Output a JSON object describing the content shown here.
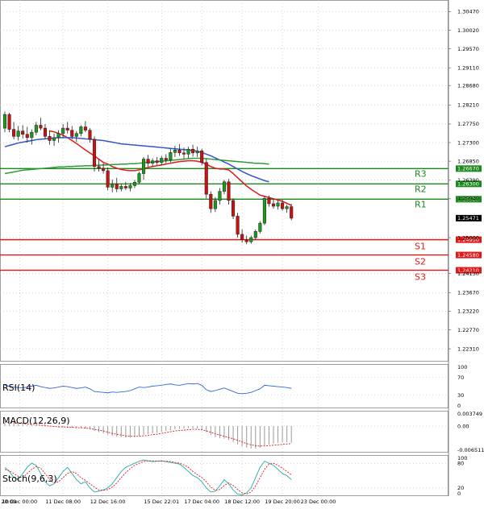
{
  "chart_data": {
    "type": "candlestick",
    "instrument_hint": "forex pair",
    "price_axis": {
      "range": [
        1.22,
        1.3075
      ],
      "tick_labels": [
        "1.30470",
        "1.30020",
        "1.29570",
        "1.29110",
        "1.28680",
        "1.28210",
        "1.27750",
        "1.27300",
        "1.26850",
        "1.26390",
        "1.25940",
        "1.25000",
        "1.24130",
        "1.23670",
        "1.23220",
        "1.22770",
        "1.22310"
      ],
      "last_price": "1.25471"
    },
    "levels": [
      {
        "name": "R3",
        "value": 1.2667,
        "label": "1.26670",
        "color": "#1a8a1a"
      },
      {
        "name": "R2",
        "value": 1.263,
        "label": "1.26300",
        "color": "#1a8a1a"
      },
      {
        "name": "R1",
        "value": 1.2593,
        "label": "1.25930",
        "color": "#1a8a1a"
      },
      {
        "name": "S1",
        "value": 1.2495,
        "label": "1.24950",
        "color": "#e01818"
      },
      {
        "name": "S2",
        "value": 1.2458,
        "label": "1.24580",
        "color": "#e01818"
      },
      {
        "name": "S3",
        "value": 1.2421,
        "label": "1.24210",
        "color": "#e01818"
      }
    ],
    "time_labels": [
      "9 Dec 20:00",
      "10 Dec 00:00",
      "11 Dec 08:00",
      "12 Dec 16:00",
      "15 Dec 22:01",
      "17 Dec 04:00",
      "18 Dec 12:00",
      "19 Dec 20:00",
      "23 Dec 00:00"
    ],
    "candles_ohlc": [
      [
        1.2765,
        1.2805,
        1.2755,
        1.2798
      ],
      [
        1.2798,
        1.2802,
        1.2755,
        1.2762
      ],
      [
        1.2762,
        1.278,
        1.2738,
        1.2745
      ],
      [
        1.2745,
        1.277,
        1.2735,
        1.2758
      ],
      [
        1.2758,
        1.2772,
        1.274,
        1.275
      ],
      [
        1.275,
        1.2768,
        1.273,
        1.2742
      ],
      [
        1.2742,
        1.2762,
        1.2725,
        1.2755
      ],
      [
        1.2755,
        1.278,
        1.2748,
        1.2772
      ],
      [
        1.2772,
        1.279,
        1.276,
        1.2765
      ],
      [
        1.2765,
        1.2775,
        1.2738,
        1.2745
      ],
      [
        1.2745,
        1.276,
        1.2725,
        1.2735
      ],
      [
        1.2735,
        1.2752,
        1.2722,
        1.2742
      ],
      [
        1.2742,
        1.276,
        1.273,
        1.2752
      ],
      [
        1.2752,
        1.2775,
        1.2742,
        1.2765
      ],
      [
        1.2765,
        1.278,
        1.2752,
        1.276
      ],
      [
        1.276,
        1.277,
        1.2738,
        1.2745
      ],
      [
        1.2745,
        1.2758,
        1.2732,
        1.2752
      ],
      [
        1.2752,
        1.2772,
        1.2745,
        1.2768
      ],
      [
        1.2768,
        1.2782,
        1.2755,
        1.276
      ],
      [
        1.276,
        1.2765,
        1.273,
        1.2738
      ],
      [
        1.2738,
        1.2745,
        1.266,
        1.2672
      ],
      [
        1.2672,
        1.269,
        1.266,
        1.2668
      ],
      [
        1.2668,
        1.268,
        1.2655,
        1.2662
      ],
      [
        1.2662,
        1.267,
        1.2615,
        1.2622
      ],
      [
        1.2622,
        1.264,
        1.261,
        1.263
      ],
      [
        1.263,
        1.2645,
        1.261,
        1.2618
      ],
      [
        1.2618,
        1.263,
        1.2612,
        1.2624
      ],
      [
        1.2624,
        1.2635,
        1.2615,
        1.262
      ],
      [
        1.262,
        1.2632,
        1.2612,
        1.2626
      ],
      [
        1.2626,
        1.264,
        1.262,
        1.2634
      ],
      [
        1.2634,
        1.266,
        1.263,
        1.2655
      ],
      [
        1.2655,
        1.2695,
        1.264,
        1.269
      ],
      [
        1.269,
        1.27,
        1.2672,
        1.268
      ],
      [
        1.268,
        1.2692,
        1.2672,
        1.2686
      ],
      [
        1.2686,
        1.2695,
        1.2676,
        1.2682
      ],
      [
        1.2682,
        1.2698,
        1.2675,
        1.2692
      ],
      [
        1.2692,
        1.2702,
        1.268,
        1.2688
      ],
      [
        1.2688,
        1.2715,
        1.2682,
        1.2706
      ],
      [
        1.2706,
        1.2722,
        1.2695,
        1.2712
      ],
      [
        1.2712,
        1.2726,
        1.2698,
        1.2705
      ],
      [
        1.2705,
        1.2718,
        1.269,
        1.2702
      ],
      [
        1.2702,
        1.272,
        1.2692,
        1.2714
      ],
      [
        1.2714,
        1.2725,
        1.2696,
        1.2705
      ],
      [
        1.2705,
        1.272,
        1.2695,
        1.271
      ],
      [
        1.271,
        1.2715,
        1.2675,
        1.2682
      ],
      [
        1.2682,
        1.269,
        1.2595,
        1.2605
      ],
      [
        1.2605,
        1.2612,
        1.256,
        1.257
      ],
      [
        1.257,
        1.2598,
        1.2562,
        1.259
      ],
      [
        1.259,
        1.262,
        1.258,
        1.2612
      ],
      [
        1.2612,
        1.264,
        1.2605,
        1.2635
      ],
      [
        1.2635,
        1.2642,
        1.258,
        1.259
      ],
      [
        1.259,
        1.2595,
        1.2545,
        1.2552
      ],
      [
        1.2552,
        1.256,
        1.25,
        1.2508
      ],
      [
        1.2508,
        1.252,
        1.2488,
        1.2495
      ],
      [
        1.2495,
        1.2505,
        1.2484,
        1.249
      ],
      [
        1.249,
        1.2505,
        1.2485,
        1.25
      ],
      [
        1.25,
        1.252,
        1.2495,
        1.2515
      ],
      [
        1.2515,
        1.254,
        1.251,
        1.2535
      ],
      [
        1.2535,
        1.26,
        1.253,
        1.2595
      ],
      [
        1.2595,
        1.2602,
        1.2575,
        1.2582
      ],
      [
        1.2582,
        1.2595,
        1.257,
        1.2576
      ],
      [
        1.2576,
        1.259,
        1.2568,
        1.2584
      ],
      [
        1.2584,
        1.2592,
        1.2565,
        1.257
      ],
      [
        1.257,
        1.258,
        1.256,
        1.2575
      ],
      [
        1.2575,
        1.2582,
        1.2542,
        1.2547
      ]
    ],
    "moving_averages": [
      {
        "name": "MA fast",
        "color": "#e01818",
        "values": [
          null,
          null,
          null,
          null,
          null,
          null,
          null,
          null,
          null,
          null,
          1.2758,
          1.2756,
          1.2752,
          1.2748,
          1.2742,
          1.2735,
          1.2728,
          1.272,
          1.2712,
          1.2705,
          1.2698,
          1.269,
          1.2682,
          1.2678,
          1.2672,
          1.2668,
          1.2665,
          1.2663,
          1.2662,
          1.2662,
          1.2664,
          1.2667,
          1.267,
          1.2672,
          1.2674,
          1.2676,
          1.2678,
          1.268,
          1.2682,
          1.2684,
          1.2685,
          1.2686,
          1.2686,
          1.2685,
          1.2682,
          1.2678,
          1.2672,
          1.2668,
          1.2666,
          1.2666,
          1.2664,
          1.2655,
          1.2645,
          1.2635,
          1.2625,
          1.2617,
          1.261,
          1.2603,
          1.26,
          1.2597,
          1.2594,
          1.2591,
          1.2588,
          1.2583,
          1.2578
        ]
      },
      {
        "name": "MA slow",
        "color": "#3355cc",
        "values": [
          1.272,
          1.2723,
          1.2726,
          1.2729,
          1.2731,
          1.2733,
          1.2735,
          1.2737,
          1.2738,
          1.2739,
          1.274,
          1.2741,
          1.2742,
          1.2742,
          1.2742,
          1.2742,
          1.2741,
          1.274,
          1.2739,
          1.2738,
          1.2737,
          1.2736,
          1.2735,
          1.2733,
          1.2731,
          1.2729,
          1.2727,
          1.2726,
          1.2725,
          1.2724,
          1.2723,
          1.2722,
          1.2721,
          1.272,
          1.2719,
          1.2718,
          1.2717,
          1.2716,
          1.2715,
          1.2714,
          1.2713,
          1.2712,
          1.2711,
          1.2709,
          1.2706,
          1.2702,
          1.2698,
          1.2693,
          1.2688,
          1.2683,
          1.2678,
          1.2672,
          1.2666,
          1.266,
          1.2655,
          1.265,
          1.2646,
          1.2642,
          1.2638,
          1.2635,
          null,
          null,
          null,
          null,
          null
        ]
      },
      {
        "name": "MA long",
        "color": "#2e9c3a",
        "values": [
          1.2655,
          1.2657,
          1.2659,
          1.2661,
          1.2663,
          1.2664,
          1.2665,
          1.2666,
          1.2667,
          1.2668,
          1.2669,
          1.267,
          1.2671,
          1.2671,
          1.2672,
          1.2672,
          1.2673,
          1.2673,
          1.2674,
          1.2674,
          1.2675,
          1.2675,
          1.2676,
          1.2676,
          1.2677,
          1.2677,
          1.2678,
          1.2678,
          1.2679,
          1.2679,
          1.268,
          1.2681,
          1.2682,
          1.2683,
          1.2684,
          1.2685,
          1.2686,
          1.2687,
          1.2688,
          1.2689,
          1.269,
          1.2691,
          1.2692,
          1.2692,
          1.2692,
          1.2691,
          1.269,
          1.2689,
          1.2688,
          1.2687,
          1.2686,
          1.2685,
          1.2684,
          1.2683,
          1.2682,
          1.2681,
          1.268,
          1.268,
          1.2679,
          1.2678,
          null,
          null,
          null,
          null,
          null
        ]
      }
    ],
    "rsi": {
      "label": "RSI(14)",
      "axis_labels": [
        "100",
        "70",
        "30",
        "0"
      ],
      "color": "#3366dd",
      "values": [
        52,
        50,
        48,
        47,
        46,
        48,
        50,
        52,
        49,
        47,
        45,
        46,
        48,
        50,
        49,
        47,
        45,
        46,
        48,
        44,
        38,
        37,
        36,
        35,
        37,
        36,
        37,
        38,
        40,
        44,
        48,
        47,
        48,
        50,
        51,
        52,
        54,
        55,
        53,
        52,
        54,
        56,
        55,
        56,
        52,
        42,
        38,
        40,
        43,
        46,
        42,
        38,
        34,
        33,
        34,
        36,
        40,
        44,
        52,
        51,
        50,
        49,
        48,
        47,
        45
      ]
    },
    "macd": {
      "label": "MACD(12,26,9)",
      "axis_labels": [
        "0.003749",
        "0.00",
        "-0.006511"
      ],
      "signal_color": "#e01818",
      "hist": [
        0.0008,
        0.0007,
        0.0006,
        0.0005,
        0.0004,
        0.0003,
        0.0002,
        0.0002,
        0.0001,
        0.0,
        -0.0001,
        -0.0002,
        -0.0002,
        -0.0003,
        -0.0003,
        -0.0004,
        -0.0004,
        -0.0005,
        -0.0006,
        -0.0008,
        -0.0012,
        -0.0015,
        -0.0018,
        -0.0021,
        -0.0024,
        -0.0026,
        -0.0027,
        -0.0028,
        -0.0028,
        -0.0027,
        -0.0025,
        -0.0022,
        -0.002,
        -0.0018,
        -0.0016,
        -0.0014,
        -0.0012,
        -0.001,
        -0.0008,
        -0.0007,
        -0.0006,
        -0.0005,
        -0.0005,
        -0.0006,
        -0.0009,
        -0.0015,
        -0.0022,
        -0.0027,
        -0.003,
        -0.0031,
        -0.0034,
        -0.0039,
        -0.0045,
        -0.005,
        -0.0053,
        -0.0055,
        -0.0055,
        -0.0053,
        -0.0048,
        -0.0045,
        -0.0043,
        -0.0041,
        -0.004,
        -0.004,
        -0.0041
      ],
      "signal": [
        0.001,
        0.0009,
        0.0008,
        0.0007,
        0.0006,
        0.0005,
        0.0004,
        0.0003,
        0.0002,
        0.0001,
        0.0,
        -0.0001,
        -0.0002,
        -0.0002,
        -0.0003,
        -0.0003,
        -0.0004,
        -0.0004,
        -0.0005,
        -0.0006,
        -0.0008,
        -0.001,
        -0.0012,
        -0.0015,
        -0.0018,
        -0.002,
        -0.0022,
        -0.0024,
        -0.0025,
        -0.0025,
        -0.0025,
        -0.0024,
        -0.0023,
        -0.0021,
        -0.002,
        -0.0018,
        -0.0016,
        -0.0014,
        -0.0012,
        -0.0011,
        -0.001,
        -0.0009,
        -0.0008,
        -0.0008,
        -0.0009,
        -0.0012,
        -0.0015,
        -0.0019,
        -0.0022,
        -0.0025,
        -0.0028,
        -0.0031,
        -0.0035,
        -0.0039,
        -0.0043,
        -0.0046,
        -0.0048,
        -0.0049,
        -0.0049,
        -0.0048,
        -0.0047,
        -0.0046,
        -0.0045,
        -0.0044,
        -0.0043
      ]
    },
    "stoch": {
      "label": "Stoch(9,6,3)",
      "axis_labels": [
        "100",
        "80",
        "20",
        "0"
      ],
      "k_color": "#22aaaa",
      "d_color": "#e01818",
      "k": [
        70,
        60,
        45,
        40,
        55,
        70,
        80,
        75,
        55,
        35,
        25,
        30,
        45,
        60,
        70,
        55,
        40,
        30,
        35,
        20,
        10,
        12,
        15,
        20,
        30,
        45,
        60,
        70,
        75,
        80,
        85,
        88,
        86,
        84,
        85,
        86,
        84,
        82,
        80,
        78,
        70,
        60,
        50,
        45,
        35,
        20,
        10,
        12,
        25,
        40,
        30,
        15,
        5,
        3,
        8,
        20,
        45,
        70,
        85,
        80,
        75,
        65,
        55,
        50,
        40
      ],
      "d": [
        65,
        62,
        55,
        48,
        45,
        55,
        65,
        72,
        68,
        55,
        40,
        32,
        35,
        45,
        55,
        60,
        55,
        45,
        38,
        30,
        22,
        15,
        14,
        16,
        22,
        32,
        45,
        57,
        67,
        75,
        80,
        84,
        86,
        86,
        85,
        85,
        85,
        84,
        82,
        80,
        76,
        70,
        60,
        52,
        45,
        35,
        22,
        14,
        16,
        26,
        32,
        26,
        16,
        8,
        5,
        10,
        25,
        45,
        65,
        78,
        80,
        75,
        68,
        60,
        52
      ]
    }
  }
}
